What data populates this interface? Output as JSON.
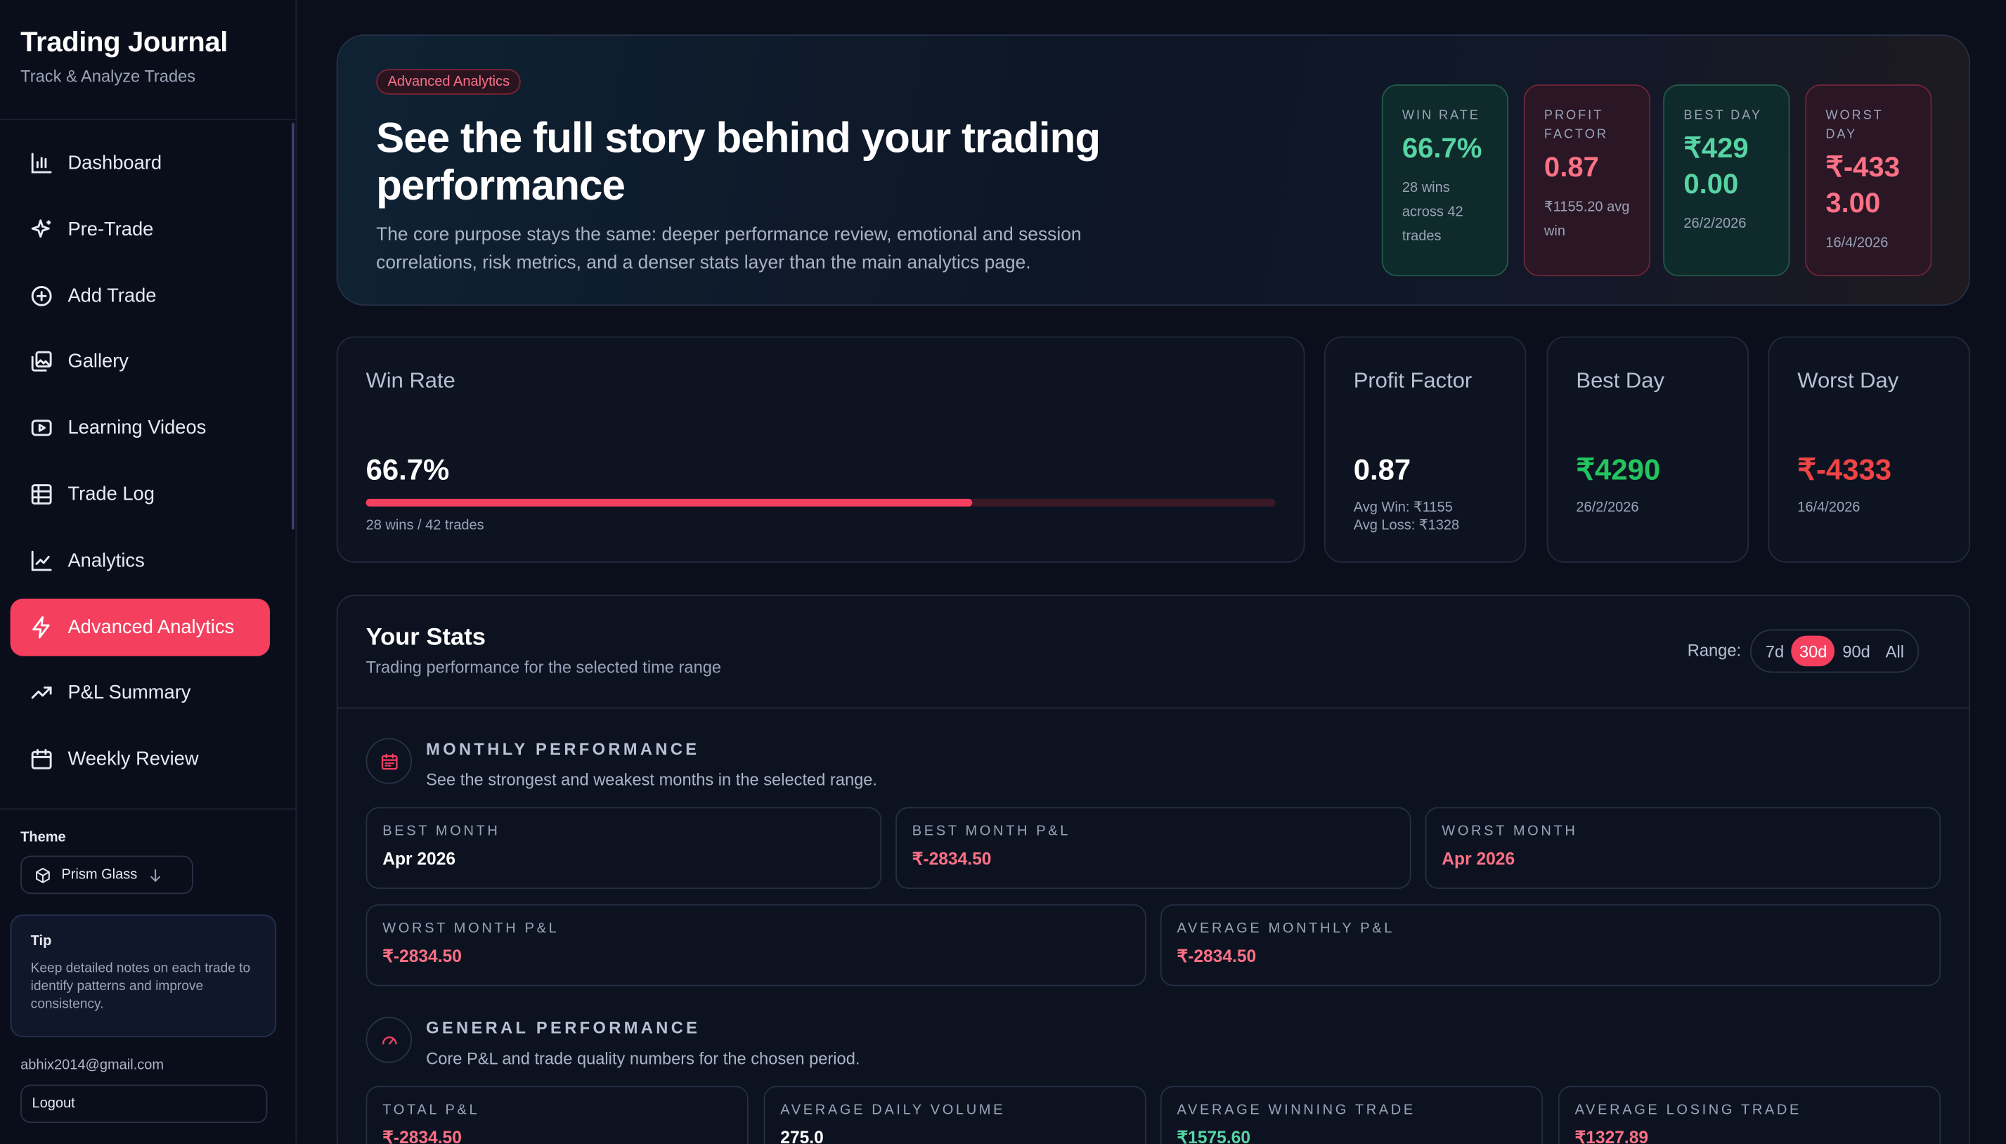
{
  "app": {
    "title": "Trading Journal",
    "subtitle": "Track & Analyze Trades"
  },
  "sidebar": {
    "items": [
      {
        "label": "Dashboard",
        "icon": "bar-chart-icon"
      },
      {
        "label": "Pre-Trade",
        "icon": "sparkles-icon"
      },
      {
        "label": "Add Trade",
        "icon": "plus-circle-icon"
      },
      {
        "label": "Gallery",
        "icon": "gallery-icon"
      },
      {
        "label": "Learning Videos",
        "icon": "video-icon"
      },
      {
        "label": "Trade Log",
        "icon": "table-icon"
      },
      {
        "label": "Analytics",
        "icon": "line-chart-icon"
      },
      {
        "label": "Advanced Analytics",
        "icon": "lightning-icon",
        "active": true
      },
      {
        "label": "P&L Summary",
        "icon": "trending-up-icon"
      },
      {
        "label": "Weekly Review",
        "icon": "calendar-icon"
      }
    ]
  },
  "theme": {
    "label": "Theme",
    "value": "Prism Glass"
  },
  "tip": {
    "title": "Tip",
    "text": "Keep detailed notes on each trade to identify patterns and improve consistency."
  },
  "user": {
    "email": "abhix2014@gmail.com",
    "logout": "Logout"
  },
  "hero": {
    "badge": "Advanced Analytics",
    "title": "See the full story behind your trading performance",
    "text": "The core purpose stays the same: deeper performance review, emotional and session correlations, risk metrics, and a denser stats layer than the main analytics page.",
    "cards": [
      {
        "label": "WIN RATE",
        "value": "66.7%",
        "sub": "28 wins across 42 trades"
      },
      {
        "label": "PROFIT FACTOR",
        "value": "0.87",
        "sub": "₹1155.20 avg win"
      },
      {
        "label": "BEST DAY",
        "value": "₹4290.00",
        "sub": "26/2/2026"
      },
      {
        "label": "WORST DAY",
        "value": "₹-4333.00",
        "sub": "16/4/2026"
      }
    ]
  },
  "summary": {
    "win_rate": {
      "title": "Win Rate",
      "value": "66.7%",
      "fill_percent": 66.7,
      "sub": "28 wins / 42 trades"
    },
    "profit_factor": {
      "title": "Profit Factor",
      "value": "0.87",
      "avg_win": "Avg Win: ₹1155",
      "avg_loss": "Avg Loss: ₹1328"
    },
    "best_day": {
      "title": "Best Day",
      "value": "₹4290",
      "date": "26/2/2026"
    },
    "worst_day": {
      "title": "Worst Day",
      "value": "₹-4333",
      "date": "16/4/2026"
    }
  },
  "stats": {
    "title": "Your Stats",
    "subtitle": "Trading performance for the selected time range",
    "range_label": "Range:",
    "ranges": [
      "7d",
      "30d",
      "90d",
      "All"
    ],
    "selected_range": "30d",
    "monthly": {
      "title": "MONTHLY PERFORMANCE",
      "subtitle": "See the strongest and weakest months in the selected range.",
      "tiles": [
        {
          "label": "BEST MONTH",
          "value": "Apr 2026"
        },
        {
          "label": "BEST MONTH P&L",
          "value": "₹-2834.50"
        },
        {
          "label": "WORST MONTH",
          "value": "Apr 2026"
        },
        {
          "label": "WORST MONTH P&L",
          "value": "₹-2834.50"
        },
        {
          "label": "AVERAGE MONTHLY P&L",
          "value": "₹-2834.50"
        }
      ]
    },
    "general": {
      "title": "GENERAL PERFORMANCE",
      "subtitle": "Core P&L and trade quality numbers for the chosen period.",
      "tiles": [
        {
          "label": "TOTAL P&L",
          "value": "₹-2834.50"
        },
        {
          "label": "AVERAGE DAILY VOLUME",
          "value": "275.0"
        },
        {
          "label": "AVERAGE WINNING TRADE",
          "value": "₹1575.60"
        },
        {
          "label": "AVERAGE LOSING TRADE",
          "value": "₹1327.89"
        }
      ]
    }
  },
  "colors": {
    "accent": "#f43f5e",
    "positive": "#56d4a4",
    "negative": "#fb7185",
    "best_day": "#22c55e",
    "worst_day": "#ef4444"
  }
}
